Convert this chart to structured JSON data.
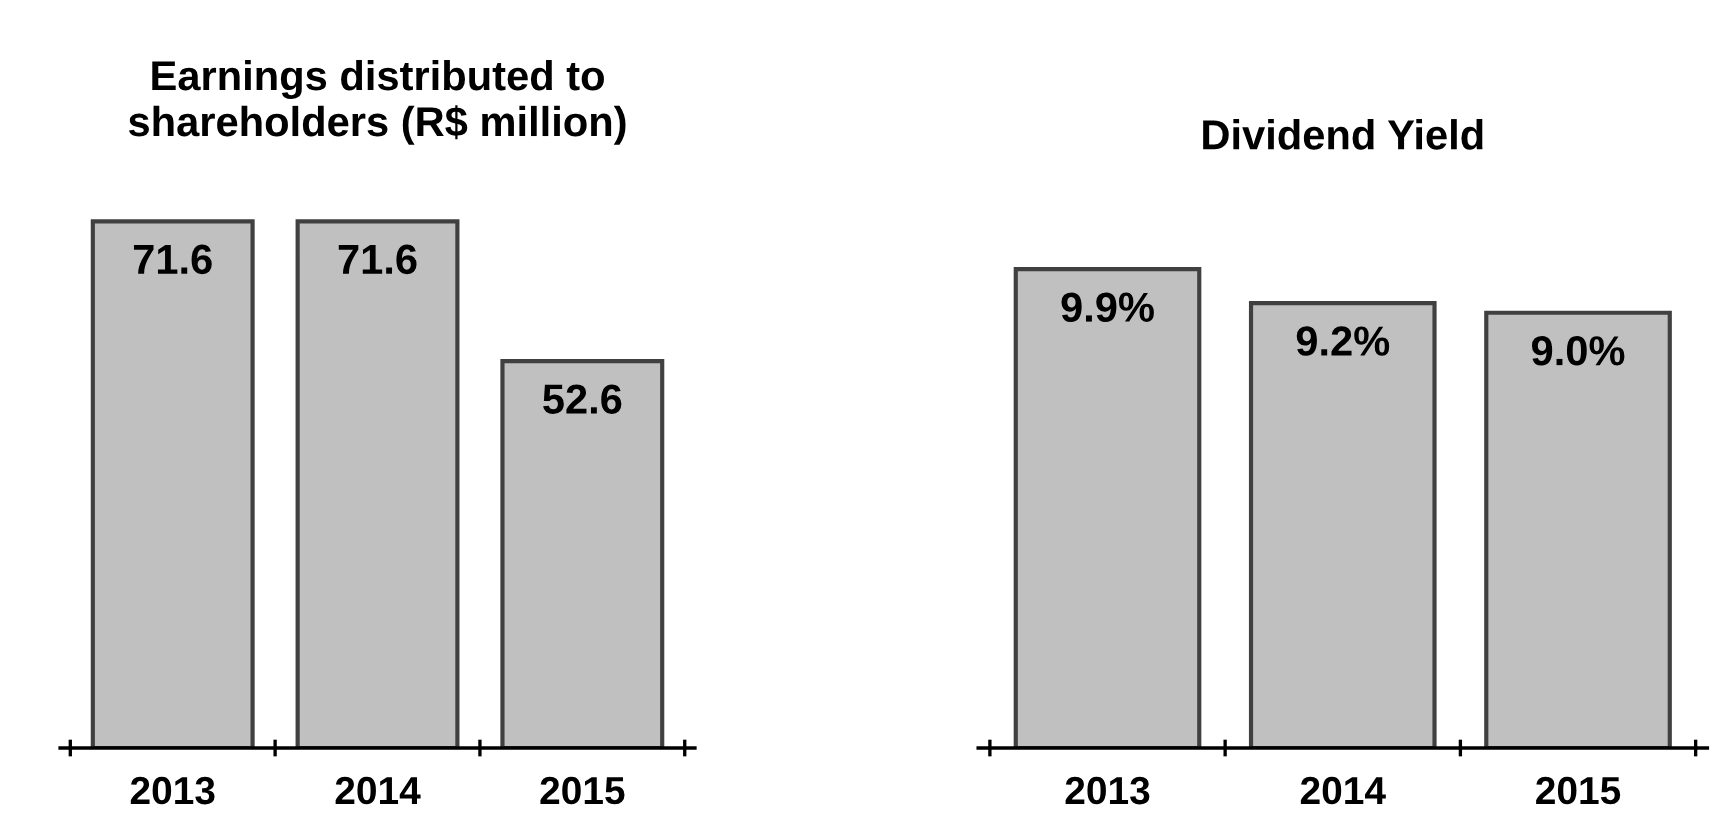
{
  "chart_data": [
    {
      "type": "bar",
      "title": "Earnings distributed to\nshareholders (R$ million)",
      "categories": [
        "2013",
        "2014",
        "2015"
      ],
      "values": [
        71.6,
        71.6,
        52.6
      ],
      "color": "#c0c0c0",
      "data_labels": true
    },
    {
      "type": "bar",
      "title": "Dividend Yield",
      "categories": [
        "2013",
        "2014",
        "2015"
      ],
      "values": [
        9.9,
        9.2,
        9.0
      ],
      "value_labels": [
        "9.9%",
        "9.2%",
        "9.0%"
      ],
      "color": "#c0c0c0"
    }
  ]
}
